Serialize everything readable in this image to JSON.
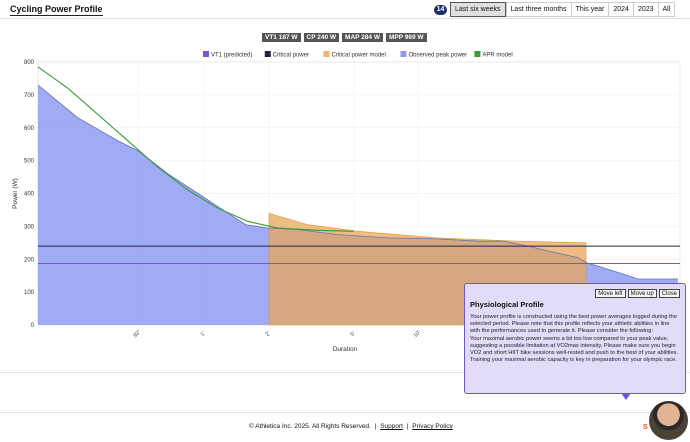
{
  "page": {
    "title": "Cycling Power Profile",
    "badge": "14"
  },
  "tabs": [
    "Last six weeks",
    "Last three months",
    "This year",
    "2024",
    "2023",
    "All"
  ],
  "active_tab": "Last six weeks",
  "stats": [
    "VT1 187 W",
    "CP 240 W",
    "MAP 284 W",
    "MPP 969 W"
  ],
  "chart_data": {
    "type": "area",
    "xlabel": "Duration",
    "ylabel": "Power (W)",
    "ylim": [
      0,
      800
    ],
    "yticks": [
      0,
      100,
      200,
      300,
      400,
      500,
      600,
      700,
      800
    ],
    "xtick_labels": [
      "30\"",
      "1'",
      "2'",
      "5'",
      "10'"
    ],
    "legend": [
      {
        "name": "VT1 (predicted)",
        "color": "#7b52d8"
      },
      {
        "name": "Critical power",
        "color": "#222244"
      },
      {
        "name": "Critical power model",
        "color": "#f2b26a"
      },
      {
        "name": "Observed peak power",
        "color": "#8e9cf0"
      },
      {
        "name": "APR model",
        "color": "#3a9a3a"
      }
    ],
    "vt1_watts": 187,
    "cp_watts": 240,
    "series": [
      {
        "name": "Observed peak power",
        "points": [
          [
            0,
            730
          ],
          [
            40,
            630
          ],
          [
            80,
            560
          ],
          [
            100,
            530
          ],
          [
            130,
            460
          ],
          [
            160,
            400
          ],
          [
            190,
            340
          ],
          [
            208,
            305
          ],
          [
            230,
            295
          ],
          [
            260,
            290
          ],
          [
            300,
            275
          ],
          [
            350,
            265
          ],
          [
            400,
            262
          ],
          [
            440,
            255
          ],
          [
            465,
            255
          ],
          [
            490,
            240
          ],
          [
            510,
            225
          ],
          [
            540,
            205
          ],
          [
            548,
            190
          ],
          [
            580,
            160
          ],
          [
            600,
            140
          ],
          [
            640,
            140
          ]
        ]
      },
      {
        "name": "Critical power model",
        "points": [
          [
            231,
            340
          ],
          [
            270,
            305
          ],
          [
            320,
            285
          ],
          [
            400,
            265
          ],
          [
            480,
            255
          ],
          [
            548,
            250
          ]
        ]
      },
      {
        "name": "APR model",
        "points": [
          [
            0,
            785
          ],
          [
            30,
            720
          ],
          [
            60,
            640
          ],
          [
            90,
            560
          ],
          [
            120,
            480
          ],
          [
            150,
            410
          ],
          [
            180,
            355
          ],
          [
            210,
            315
          ],
          [
            240,
            295
          ],
          [
            280,
            288
          ],
          [
            316,
            285
          ]
        ]
      }
    ]
  },
  "tooltip": {
    "buttons": [
      "Move left",
      "Move up",
      "Close"
    ],
    "title": "Physiological Profile",
    "p1": "Your power profile is constructed using the best power averages logged during the selected period. Please note that this profile reflects your athletic abilities in line with the performances used to generate it. Please consider the following:",
    "p2": "Your maximal aerobic power seems a bit too low compared to your peak value, suggesting a possible limitation at VO2max intensity. Please make sure you begin VO2 and short HIIT bike sessions well-rested and push to the best of your abilities. Training your maximal aerobic capacity is key in preparation for your olympic race."
  },
  "footer": {
    "copyright": "© Athletica Inc. 2025. All Rights Reserved.",
    "support": "Support",
    "privacy": "Privacy Policy"
  }
}
